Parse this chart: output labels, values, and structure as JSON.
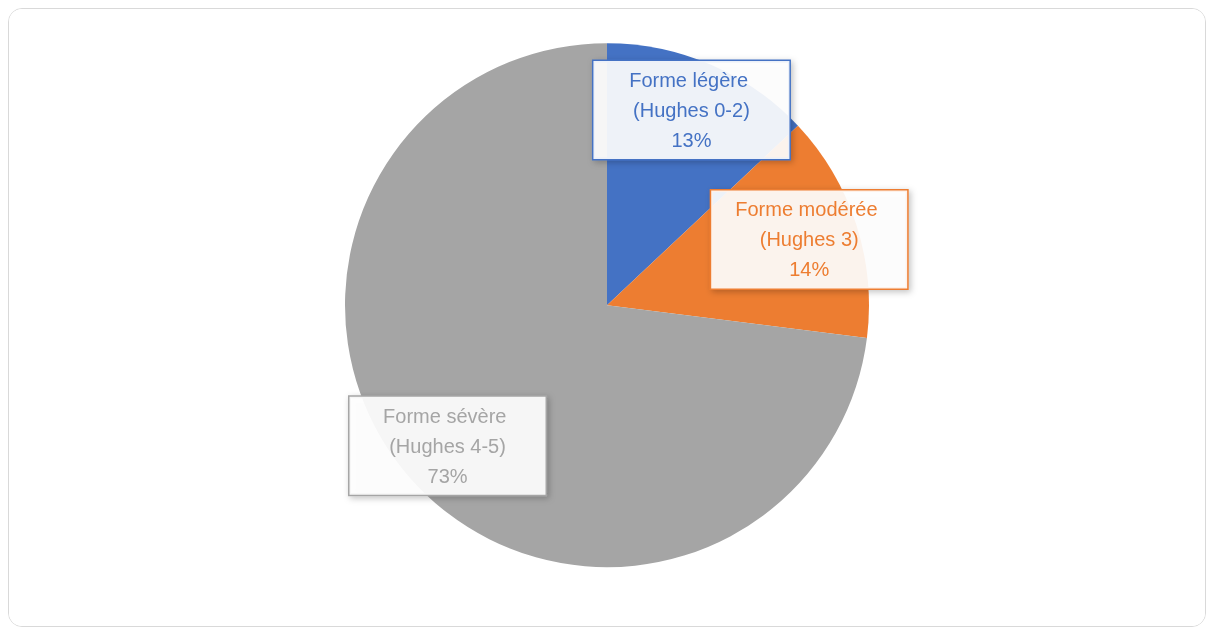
{
  "chart_data": {
    "type": "pie",
    "categories": [
      "Forme légère (Hughes 0-2)",
      "Forme modérée (Hughes 3)",
      "Forme sévère (Hughes 4-5)"
    ],
    "values": [
      13,
      14,
      73
    ],
    "value_labels": [
      "13%",
      "14%",
      "73%"
    ],
    "colors": [
      "#4472c4",
      "#ed7d31",
      "#a5a5a5"
    ]
  }
}
